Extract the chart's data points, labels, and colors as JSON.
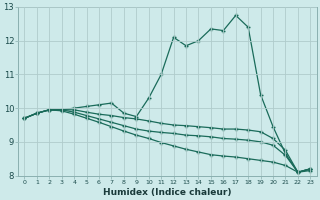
{
  "xlabel": "Humidex (Indice chaleur)",
  "xlim": [
    -0.5,
    23.5
  ],
  "ylim": [
    8,
    13
  ],
  "bg_color": "#ceeaea",
  "grid_color": "#b0cccc",
  "line_color": "#1a6b5a",
  "x": [
    0,
    1,
    2,
    3,
    4,
    5,
    6,
    7,
    8,
    9,
    10,
    11,
    12,
    13,
    14,
    15,
    16,
    17,
    18,
    19,
    20,
    21,
    22,
    23
  ],
  "line1": [
    9.7,
    9.85,
    9.95,
    9.95,
    10.0,
    10.05,
    10.1,
    10.15,
    9.85,
    9.75,
    10.3,
    11.0,
    12.1,
    11.85,
    12.0,
    12.35,
    12.3,
    12.75,
    12.4,
    10.4,
    9.45,
    8.65,
    8.1,
    8.15
  ],
  "line2": [
    9.7,
    9.85,
    9.95,
    9.95,
    9.95,
    9.88,
    9.82,
    9.78,
    9.72,
    9.68,
    9.62,
    9.55,
    9.5,
    9.48,
    9.45,
    9.42,
    9.38,
    9.38,
    9.35,
    9.3,
    9.1,
    8.75,
    8.1,
    8.2
  ],
  "line3": [
    9.7,
    9.85,
    9.95,
    9.95,
    9.88,
    9.78,
    9.68,
    9.58,
    9.48,
    9.38,
    9.32,
    9.28,
    9.25,
    9.2,
    9.18,
    9.15,
    9.1,
    9.08,
    9.05,
    9.0,
    8.9,
    8.6,
    8.1,
    8.2
  ],
  "line4": [
    9.7,
    9.85,
    9.95,
    9.92,
    9.82,
    9.7,
    9.58,
    9.45,
    9.32,
    9.2,
    9.1,
    8.98,
    8.88,
    8.78,
    8.7,
    8.62,
    8.58,
    8.55,
    8.5,
    8.45,
    8.4,
    8.3,
    8.1,
    8.2
  ],
  "xticks": [
    0,
    1,
    2,
    3,
    4,
    5,
    6,
    7,
    8,
    9,
    10,
    11,
    12,
    13,
    14,
    15,
    16,
    17,
    18,
    19,
    20,
    21,
    22,
    23
  ],
  "yticks": [
    8,
    9,
    10,
    11,
    12,
    13
  ]
}
